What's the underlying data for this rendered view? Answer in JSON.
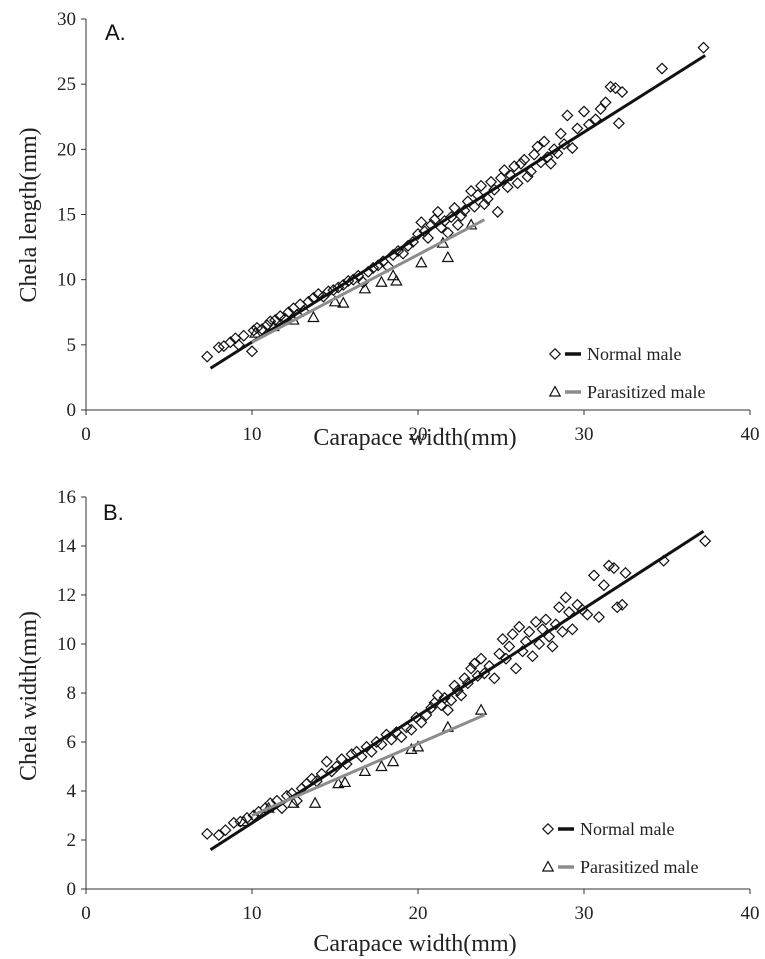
{
  "chart_data": [
    {
      "type": "scatter",
      "panel_label": "A.",
      "xlabel": "Carapace width(mm)",
      "ylabel": "Chela  length(mm)",
      "xlim": [
        0,
        40
      ],
      "ylim": [
        0,
        30
      ],
      "x_ticks": [
        0,
        10,
        20,
        30,
        40
      ],
      "y_ticks": [
        0,
        5,
        10,
        15,
        20,
        25,
        30
      ],
      "grid": false,
      "legend_position": "bottom-right",
      "series": [
        {
          "name": "Normal male",
          "marker": "diamond",
          "color": "#111111",
          "points": [
            [
              7.3,
              4.1
            ],
            [
              8.0,
              4.8
            ],
            [
              8.3,
              4.9
            ],
            [
              8.7,
              5.2
            ],
            [
              9.0,
              5.5
            ],
            [
              9.2,
              5.0
            ],
            [
              9.5,
              5.7
            ],
            [
              10.0,
              4.5
            ],
            [
              10.1,
              6.1
            ],
            [
              10.3,
              6.3
            ],
            [
              10.6,
              6.2
            ],
            [
              10.9,
              6.5
            ],
            [
              11.1,
              6.8
            ],
            [
              11.4,
              6.9
            ],
            [
              11.7,
              7.2
            ],
            [
              12.0,
              7.0
            ],
            [
              12.2,
              7.5
            ],
            [
              12.5,
              7.8
            ],
            [
              12.7,
              7.3
            ],
            [
              12.9,
              8.1
            ],
            [
              13.1,
              7.6
            ],
            [
              13.4,
              8.3
            ],
            [
              13.7,
              8.6
            ],
            [
              14.0,
              8.9
            ],
            [
              14.3,
              8.7
            ],
            [
              14.6,
              9.1
            ],
            [
              14.9,
              9.2
            ],
            [
              15.2,
              9.4
            ],
            [
              15.5,
              9.6
            ],
            [
              15.8,
              9.9
            ],
            [
              16.1,
              10.0
            ],
            [
              16.4,
              10.3
            ],
            [
              16.7,
              9.8
            ],
            [
              17.0,
              10.6
            ],
            [
              17.3,
              10.9
            ],
            [
              17.6,
              11.1
            ],
            [
              17.9,
              11.4
            ],
            [
              18.2,
              11.0
            ],
            [
              18.5,
              11.9
            ],
            [
              18.8,
              12.2
            ],
            [
              19.1,
              12.0
            ],
            [
              19.4,
              12.6
            ],
            [
              19.7,
              12.9
            ],
            [
              20.0,
              13.5
            ],
            [
              20.2,
              14.4
            ],
            [
              20.4,
              13.7
            ],
            [
              20.6,
              13.2
            ],
            [
              20.8,
              14.2
            ],
            [
              21.0,
              14.6
            ],
            [
              21.2,
              15.2
            ],
            [
              21.4,
              14.0
            ],
            [
              21.6,
              14.5
            ],
            [
              21.8,
              13.6
            ],
            [
              22.0,
              14.8
            ],
            [
              22.2,
              15.5
            ],
            [
              22.4,
              14.2
            ],
            [
              22.6,
              14.9
            ],
            [
              22.8,
              15.3
            ],
            [
              23.0,
              16.0
            ],
            [
              23.2,
              16.8
            ],
            [
              23.4,
              15.6
            ],
            [
              23.6,
              16.5
            ],
            [
              23.8,
              17.2
            ],
            [
              24.0,
              15.8
            ],
            [
              24.2,
              16.2
            ],
            [
              24.4,
              17.5
            ],
            [
              24.6,
              16.9
            ],
            [
              24.8,
              15.2
            ],
            [
              25.0,
              17.8
            ],
            [
              25.2,
              18.4
            ],
            [
              25.4,
              17.1
            ],
            [
              25.6,
              18.0
            ],
            [
              25.8,
              18.7
            ],
            [
              26.0,
              17.4
            ],
            [
              26.2,
              18.9
            ],
            [
              26.4,
              19.2
            ],
            [
              26.6,
              17.9
            ],
            [
              26.8,
              18.3
            ],
            [
              27.0,
              19.6
            ],
            [
              27.2,
              20.2
            ],
            [
              27.4,
              19.0
            ],
            [
              27.6,
              20.6
            ],
            [
              27.8,
              19.4
            ],
            [
              28.0,
              18.9
            ],
            [
              28.2,
              20.0
            ],
            [
              28.4,
              19.7
            ],
            [
              28.6,
              21.2
            ],
            [
              28.8,
              20.4
            ],
            [
              29.0,
              22.6
            ],
            [
              29.3,
              20.1
            ],
            [
              29.6,
              21.6
            ],
            [
              30.0,
              22.9
            ],
            [
              30.3,
              21.9
            ],
            [
              30.7,
              22.3
            ],
            [
              31.0,
              23.1
            ],
            [
              31.3,
              23.6
            ],
            [
              31.6,
              24.8
            ],
            [
              31.9,
              24.7
            ],
            [
              32.1,
              22.0
            ],
            [
              32.3,
              24.4
            ],
            [
              34.7,
              26.2
            ],
            [
              37.2,
              27.8
            ]
          ],
          "fit": [
            [
              7.5,
              3.2
            ],
            [
              37.3,
              27.2
            ]
          ]
        },
        {
          "name": "Parasitized male",
          "marker": "triangle",
          "color": "#8c8c8c",
          "points": [
            [
              10.2,
              5.9
            ],
            [
              11.3,
              6.4
            ],
            [
              12.5,
              6.9
            ],
            [
              13.7,
              7.1
            ],
            [
              15.0,
              8.3
            ],
            [
              15.5,
              8.2
            ],
            [
              16.8,
              9.3
            ],
            [
              17.8,
              9.8
            ],
            [
              18.5,
              10.3
            ],
            [
              18.7,
              9.9
            ],
            [
              20.2,
              11.3
            ],
            [
              21.5,
              12.8
            ],
            [
              21.8,
              11.7
            ],
            [
              23.2,
              14.2
            ]
          ],
          "fit": [
            [
              10.0,
              5.2
            ],
            [
              24.0,
              14.6
            ]
          ]
        }
      ]
    },
    {
      "type": "scatter",
      "panel_label": "B.",
      "xlabel": "Carapace width(mm)",
      "ylabel": "Chela  width(mm)",
      "xlim": [
        0,
        40
      ],
      "ylim": [
        0,
        16
      ],
      "x_ticks": [
        0,
        10,
        20,
        30,
        40
      ],
      "y_ticks": [
        0,
        2,
        4,
        6,
        8,
        10,
        12,
        14,
        16
      ],
      "grid": false,
      "legend_position": "bottom-right",
      "series": [
        {
          "name": "Normal male",
          "marker": "diamond",
          "color": "#111111",
          "points": [
            [
              7.3,
              2.25
            ],
            [
              8.0,
              2.2
            ],
            [
              8.4,
              2.4
            ],
            [
              8.9,
              2.7
            ],
            [
              9.3,
              2.75
            ],
            [
              9.7,
              2.9
            ],
            [
              10.1,
              3.0
            ],
            [
              10.4,
              3.15
            ],
            [
              10.8,
              3.3
            ],
            [
              11.1,
              3.5
            ],
            [
              11.5,
              3.6
            ],
            [
              11.8,
              3.3
            ],
            [
              12.1,
              3.8
            ],
            [
              12.4,
              3.9
            ],
            [
              12.7,
              3.6
            ],
            [
              13.0,
              4.1
            ],
            [
              13.3,
              4.3
            ],
            [
              13.6,
              4.5
            ],
            [
              13.9,
              4.4
            ],
            [
              14.2,
              4.7
            ],
            [
              14.5,
              5.2
            ],
            [
              14.8,
              4.8
            ],
            [
              15.1,
              5.0
            ],
            [
              15.4,
              5.3
            ],
            [
              15.7,
              5.1
            ],
            [
              16.0,
              5.5
            ],
            [
              16.3,
              5.6
            ],
            [
              16.6,
              5.4
            ],
            [
              16.9,
              5.8
            ],
            [
              17.2,
              5.6
            ],
            [
              17.5,
              6.0
            ],
            [
              17.8,
              5.9
            ],
            [
              18.1,
              6.3
            ],
            [
              18.4,
              6.1
            ],
            [
              18.7,
              6.4
            ],
            [
              19.0,
              6.2
            ],
            [
              19.3,
              6.6
            ],
            [
              19.6,
              6.5
            ],
            [
              19.9,
              7.0
            ],
            [
              20.2,
              6.8
            ],
            [
              20.5,
              7.1
            ],
            [
              20.8,
              7.4
            ],
            [
              21.0,
              7.6
            ],
            [
              21.2,
              7.9
            ],
            [
              21.4,
              7.5
            ],
            [
              21.6,
              7.8
            ],
            [
              21.8,
              7.3
            ],
            [
              22.0,
              7.7
            ],
            [
              22.2,
              8.3
            ],
            [
              22.4,
              8.1
            ],
            [
              22.6,
              7.9
            ],
            [
              22.8,
              8.6
            ],
            [
              23.0,
              8.4
            ],
            [
              23.2,
              9.0
            ],
            [
              23.4,
              9.2
            ],
            [
              23.6,
              8.7
            ],
            [
              23.8,
              9.4
            ],
            [
              24.0,
              8.8
            ],
            [
              24.3,
              9.1
            ],
            [
              24.6,
              8.6
            ],
            [
              24.9,
              9.6
            ],
            [
              25.1,
              10.2
            ],
            [
              25.3,
              9.4
            ],
            [
              25.5,
              9.9
            ],
            [
              25.7,
              10.4
            ],
            [
              25.9,
              9.0
            ],
            [
              26.1,
              10.7
            ],
            [
              26.3,
              9.7
            ],
            [
              26.5,
              10.1
            ],
            [
              26.7,
              10.5
            ],
            [
              26.9,
              9.5
            ],
            [
              27.1,
              10.9
            ],
            [
              27.3,
              10.0
            ],
            [
              27.5,
              10.6
            ],
            [
              27.7,
              11.0
            ],
            [
              27.9,
              10.3
            ],
            [
              28.1,
              9.9
            ],
            [
              28.3,
              10.8
            ],
            [
              28.5,
              11.5
            ],
            [
              28.7,
              10.5
            ],
            [
              28.9,
              11.9
            ],
            [
              29.1,
              11.3
            ],
            [
              29.3,
              10.6
            ],
            [
              29.6,
              11.6
            ],
            [
              29.9,
              11.4
            ],
            [
              30.2,
              11.2
            ],
            [
              30.6,
              12.8
            ],
            [
              30.9,
              11.1
            ],
            [
              31.2,
              12.4
            ],
            [
              31.5,
              13.2
            ],
            [
              31.8,
              13.1
            ],
            [
              32.0,
              11.5
            ],
            [
              32.3,
              11.6
            ],
            [
              32.5,
              12.9
            ],
            [
              34.8,
              13.4
            ],
            [
              37.3,
              14.2
            ]
          ],
          "fit": [
            [
              7.5,
              1.6
            ],
            [
              37.2,
              14.6
            ]
          ]
        },
        {
          "name": "Parasitized male",
          "marker": "triangle",
          "color": "#8c8c8c",
          "points": [
            [
              9.5,
              2.75
            ],
            [
              11.0,
              3.3
            ],
            [
              12.5,
              3.5
            ],
            [
              13.8,
              3.5
            ],
            [
              15.2,
              4.3
            ],
            [
              15.6,
              4.35
            ],
            [
              16.8,
              4.8
            ],
            [
              17.8,
              5.0
            ],
            [
              18.5,
              5.2
            ],
            [
              19.6,
              5.7
            ],
            [
              20.0,
              5.8
            ],
            [
              21.8,
              6.6
            ],
            [
              23.8,
              7.3
            ]
          ],
          "fit": [
            [
              10.0,
              3.0
            ],
            [
              24.0,
              7.1
            ]
          ]
        }
      ]
    }
  ]
}
